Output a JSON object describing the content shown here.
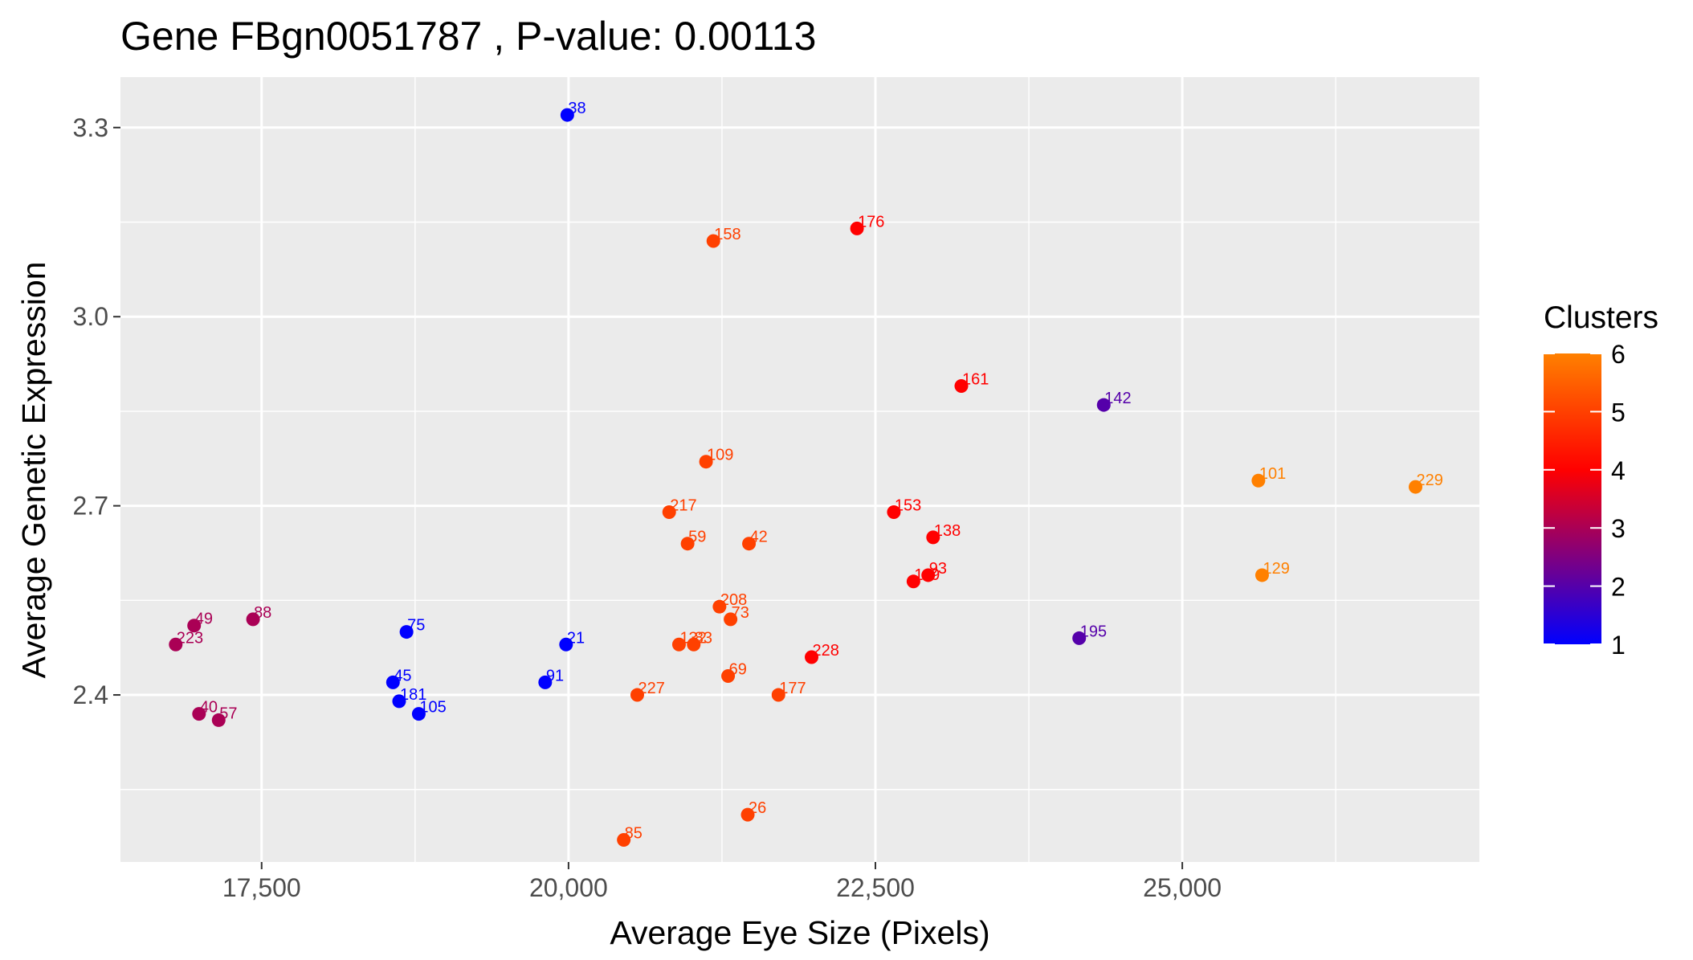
{
  "chart_data": {
    "type": "scatter",
    "title": "Gene FBgn0051787 , P-value: 0.00113",
    "xlabel": "Average Eye Size (Pixels)",
    "ylabel": "Average Genetic Expression",
    "xlim": [
      16350,
      27420
    ],
    "ylim": [
      2.135,
      3.38
    ],
    "x_ticks": [
      17500,
      20000,
      22500,
      25000
    ],
    "x_tick_labels": [
      "17,500",
      "20,000",
      "22,500",
      "25,000"
    ],
    "y_ticks": [
      2.4,
      2.7,
      3.0,
      3.3
    ],
    "y_tick_labels": [
      "2.4",
      "2.7",
      "3.0",
      "3.3"
    ],
    "grid": true,
    "legend": {
      "title": "Clusters",
      "placement": "right",
      "type": "colorbar",
      "min": 1,
      "max": 6,
      "ticks": [
        1,
        2,
        3,
        4,
        5,
        6
      ],
      "tick_labels": [
        "1",
        "2",
        "3",
        "4",
        "5",
        "6"
      ],
      "colors": [
        "#0000ff",
        "#ff0000",
        "#ff8000"
      ]
    },
    "points": [
      {
        "label": "38",
        "x": 19990,
        "y": 3.32,
        "cluster": 1
      },
      {
        "label": "158",
        "x": 21180,
        "y": 3.12,
        "cluster": 5
      },
      {
        "label": "176",
        "x": 22350,
        "y": 3.14,
        "cluster": 4
      },
      {
        "label": "161",
        "x": 23200,
        "y": 2.89,
        "cluster": 4
      },
      {
        "label": "142",
        "x": 24360,
        "y": 2.86,
        "cluster": 2
      },
      {
        "label": "109",
        "x": 21120,
        "y": 2.77,
        "cluster": 5
      },
      {
        "label": "101",
        "x": 25620,
        "y": 2.74,
        "cluster": 6
      },
      {
        "label": "229",
        "x": 26900,
        "y": 2.73,
        "cluster": 6
      },
      {
        "label": "217",
        "x": 20820,
        "y": 2.69,
        "cluster": 5
      },
      {
        "label": "153",
        "x": 22650,
        "y": 2.69,
        "cluster": 4
      },
      {
        "label": "138",
        "x": 22970,
        "y": 2.65,
        "cluster": 4
      },
      {
        "label": "59",
        "x": 20970,
        "y": 2.64,
        "cluster": 5
      },
      {
        "label": "42",
        "x": 21470,
        "y": 2.64,
        "cluster": 5
      },
      {
        "label": "129",
        "x": 25650,
        "y": 2.59,
        "cluster": 6
      },
      {
        "label": "93",
        "x": 22930,
        "y": 2.59,
        "cluster": 4
      },
      {
        "label": "119",
        "x": 22810,
        "y": 2.58,
        "cluster": 4
      },
      {
        "label": "208",
        "x": 21230,
        "y": 2.54,
        "cluster": 5
      },
      {
        "label": "73",
        "x": 21320,
        "y": 2.52,
        "cluster": 5
      },
      {
        "label": "88",
        "x": 17430,
        "y": 2.52,
        "cluster": 3
      },
      {
        "label": "49",
        "x": 16950,
        "y": 2.51,
        "cluster": 3
      },
      {
        "label": "75",
        "x": 18680,
        "y": 2.5,
        "cluster": 1
      },
      {
        "label": "195",
        "x": 24160,
        "y": 2.49,
        "cluster": 2
      },
      {
        "label": "21",
        "x": 19980,
        "y": 2.48,
        "cluster": 1
      },
      {
        "label": "223",
        "x": 16800,
        "y": 2.48,
        "cluster": 3
      },
      {
        "label": "132",
        "x": 20900,
        "y": 2.48,
        "cluster": 5
      },
      {
        "label": "83",
        "x": 21020,
        "y": 2.48,
        "cluster": 5
      },
      {
        "label": "228",
        "x": 21980,
        "y": 2.46,
        "cluster": 4
      },
      {
        "label": "69",
        "x": 21300,
        "y": 2.43,
        "cluster": 5
      },
      {
        "label": "45",
        "x": 18570,
        "y": 2.42,
        "cluster": 1
      },
      {
        "label": "91",
        "x": 19810,
        "y": 2.42,
        "cluster": 1
      },
      {
        "label": "227",
        "x": 20560,
        "y": 2.4,
        "cluster": 5
      },
      {
        "label": "177",
        "x": 21710,
        "y": 2.4,
        "cluster": 5
      },
      {
        "label": "181",
        "x": 18620,
        "y": 2.39,
        "cluster": 1
      },
      {
        "label": "40",
        "x": 16990,
        "y": 2.37,
        "cluster": 3
      },
      {
        "label": "105",
        "x": 18780,
        "y": 2.37,
        "cluster": 1
      },
      {
        "label": "57",
        "x": 17150,
        "y": 2.36,
        "cluster": 3
      },
      {
        "label": "26",
        "x": 21460,
        "y": 2.21,
        "cluster": 5
      },
      {
        "label": "85",
        "x": 20450,
        "y": 2.17,
        "cluster": 5
      }
    ]
  }
}
